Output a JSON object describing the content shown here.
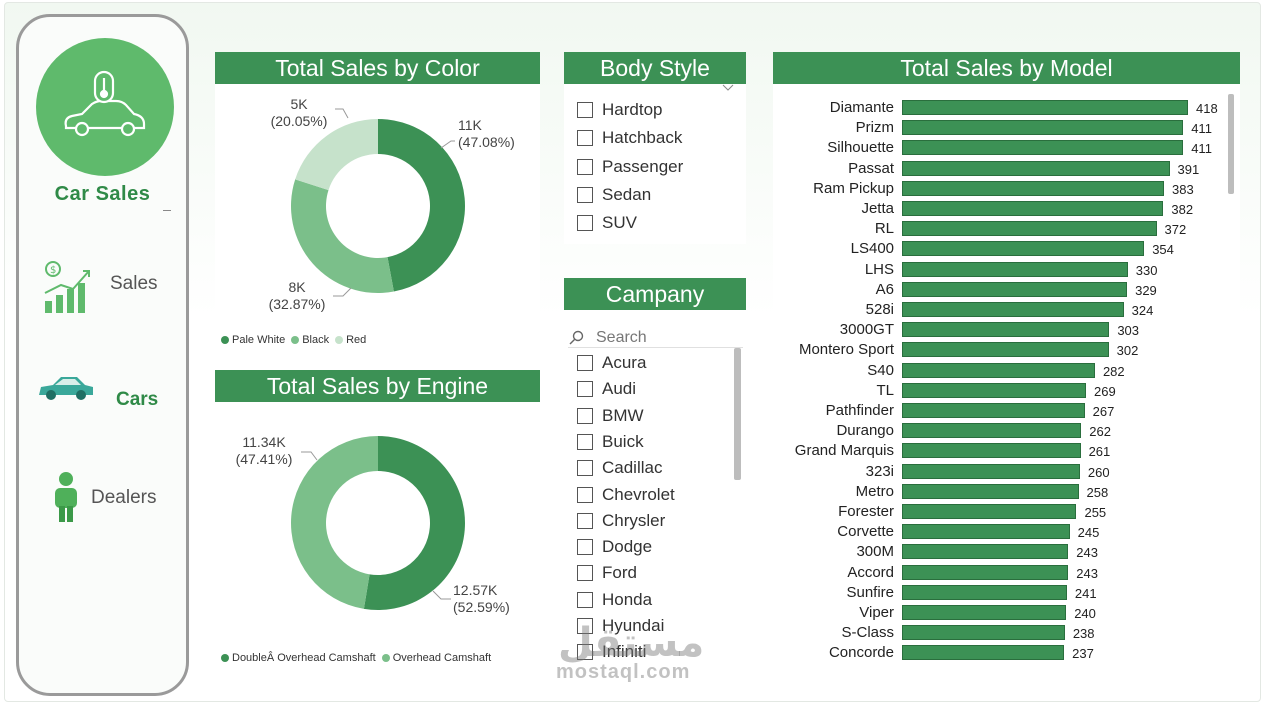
{
  "sidebar": {
    "brand": "Car Sales",
    "items": [
      {
        "label": "Sales",
        "icon": "sales-chart-icon"
      },
      {
        "label": "Cars",
        "icon": "car-icon"
      },
      {
        "label": "Dealers",
        "icon": "person-icon"
      }
    ]
  },
  "colors": {
    "primary": "#3c9155",
    "mid": "#7bbf8a",
    "light": "#c6e2cb"
  },
  "color_chart": {
    "title": "Total Sales by Color",
    "slices": [
      {
        "name": "Pale White",
        "label": "11K",
        "pct": "(47.08%)",
        "value": 47.08
      },
      {
        "name": "Black",
        "label": "8K",
        "pct": "(32.87%)",
        "value": 32.87
      },
      {
        "name": "Red",
        "label": "5K",
        "pct": "(20.05%)",
        "value": 20.05
      }
    ]
  },
  "engine_chart": {
    "title": "Total Sales by Engine",
    "slices": [
      {
        "name": "DoubleÂ Overhead Camshaft",
        "label": "12.57K",
        "pct": "(52.59%)",
        "value": 52.59
      },
      {
        "name": "Overhead Camshaft",
        "label": "11.34K",
        "pct": "(47.41%)",
        "value": 47.41
      }
    ]
  },
  "body_style": {
    "title": "Body Style",
    "options": [
      "Hardtop",
      "Hatchback",
      "Passenger",
      "Sedan",
      "SUV"
    ]
  },
  "company": {
    "title": "Campany",
    "search_placeholder": "Search",
    "options": [
      "Acura",
      "Audi",
      "BMW",
      "Buick",
      "Cadillac",
      "Chevrolet",
      "Chrysler",
      "Dodge",
      "Ford",
      "Honda",
      "Hyundai",
      "Infiniti"
    ]
  },
  "model_chart": {
    "title": "Total Sales by Model",
    "categories": [
      "Diamante",
      "Prizm",
      "Silhouette",
      "Passat",
      "Ram Pickup",
      "Jetta",
      "RL",
      "LS400",
      "LHS",
      "A6",
      "528i",
      "3000GT",
      "Montero Sport",
      "S40",
      "TL",
      "Pathfinder",
      "Durango",
      "Grand Marquis",
      "323i",
      "Metro",
      "Forester",
      "Corvette",
      "300M",
      "Accord",
      "Sunfire",
      "Viper",
      "S-Class",
      "Concorde"
    ],
    "values": [
      418,
      411,
      411,
      391,
      383,
      382,
      372,
      354,
      330,
      329,
      324,
      303,
      302,
      282,
      269,
      267,
      262,
      261,
      260,
      258,
      255,
      245,
      243,
      243,
      241,
      240,
      238,
      237
    ]
  },
  "chart_data": [
    {
      "type": "pie",
      "title": "Total Sales by Color",
      "categories": [
        "Pale White",
        "Black",
        "Red"
      ],
      "values": [
        47.08,
        32.87,
        20.05
      ],
      "labels": [
        "11K",
        "8K",
        "5K"
      ]
    },
    {
      "type": "pie",
      "title": "Total Sales by Engine",
      "categories": [
        "DoubleÂ Overhead Camshaft",
        "Overhead Camshaft"
      ],
      "values": [
        52.59,
        47.41
      ],
      "labels": [
        "12.57K",
        "11.34K"
      ]
    },
    {
      "type": "bar",
      "title": "Total Sales by Model",
      "categories": [
        "Diamante",
        "Prizm",
        "Silhouette",
        "Passat",
        "Ram Pickup",
        "Jetta",
        "RL",
        "LS400",
        "LHS",
        "A6",
        "528i",
        "3000GT",
        "Montero Sport",
        "S40",
        "TL",
        "Pathfinder",
        "Durango",
        "Grand Marquis",
        "323i",
        "Metro",
        "Forester",
        "Corvette",
        "300M",
        "Accord",
        "Sunfire",
        "Viper",
        "S-Class",
        "Concorde"
      ],
      "values": [
        418,
        411,
        411,
        391,
        383,
        382,
        372,
        354,
        330,
        329,
        324,
        303,
        302,
        282,
        269,
        267,
        262,
        261,
        260,
        258,
        255,
        245,
        243,
        243,
        241,
        240,
        238,
        237
      ]
    }
  ],
  "watermark": {
    "arabic": "مستقل",
    "latin": "mostaql.com"
  }
}
